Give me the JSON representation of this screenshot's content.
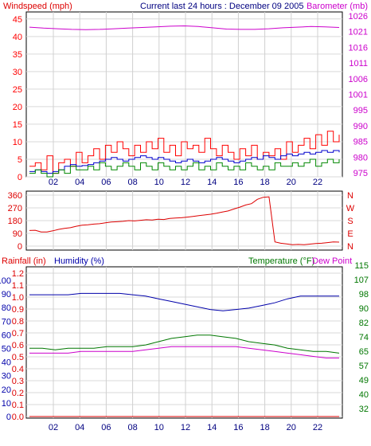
{
  "header": {
    "title": "Current last 24 hours : December 09 2005"
  },
  "colors": {
    "wind_speed": "#ff0000",
    "wind_avg": "#0000cc",
    "wind_green": "#008800",
    "barometer": "#cc00cc",
    "direction": "#dd0000",
    "rain": "#dd0000",
    "humidity": "#0000aa",
    "temperature": "#007700",
    "dew_point": "#cc00cc",
    "hour_labels": "#000080",
    "grid": "#d9d9d9"
  },
  "chart_data": [
    {
      "type": "line",
      "id": "wind_barometer",
      "left_axis_label": "Windspeed (mph)",
      "right_axis_label": "Barometer (mb)",
      "x_ticks": [
        "02",
        "04",
        "06",
        "08",
        "10",
        "12",
        "14",
        "16",
        "18",
        "20",
        "22"
      ],
      "left_ticks": [
        "0",
        "5",
        "10",
        "15",
        "20",
        "25",
        "30",
        "35",
        "40",
        "45"
      ],
      "right_ticks": [
        "975",
        "980",
        "985",
        "990",
        "995",
        "1001",
        "1006",
        "1011",
        "1016",
        "1021",
        "1026"
      ],
      "ylim_left": [
        0,
        47
      ],
      "ylim_right": [
        975,
        1026
      ],
      "series": [
        {
          "role": "barometer",
          "values": [
            1021.3,
            1021.0,
            1020.8,
            1020.6,
            1020.5,
            1020.6,
            1020.8,
            1021.0,
            1021.2,
            1021.4,
            1021.6,
            1021.7,
            1021.5,
            1021.1,
            1020.7,
            1020.6,
            1020.6,
            1020.8,
            1021.1,
            1021.3,
            1021.5,
            1021.4,
            1021.2
          ]
        },
        {
          "role": "wind_speed",
          "values": [
            3,
            4,
            2,
            6,
            1,
            4,
            5,
            3,
            7,
            4,
            6,
            8,
            5,
            9,
            7,
            10,
            8,
            6,
            9,
            7,
            10,
            8,
            11,
            7,
            9,
            6,
            10,
            8,
            9,
            7,
            11,
            8,
            6,
            9,
            7,
            5,
            8,
            6,
            9,
            5,
            7,
            6,
            8,
            5,
            10,
            7,
            9,
            11,
            8,
            12,
            9,
            13,
            10,
            12
          ]
        },
        {
          "role": "wind_avg",
          "values": [
            1.5,
            2,
            1.5,
            1,
            1.5,
            2,
            3,
            3.5,
            3,
            3.2,
            3.5,
            4,
            4.5,
            5,
            5.5,
            5,
            4.5,
            5,
            5.5,
            6,
            5.5,
            5,
            5.5,
            5,
            4.5,
            4,
            4.5,
            5,
            4.5,
            4,
            4.5,
            5,
            5.5,
            5,
            4.5,
            4,
            4.5,
            5,
            5.5,
            5,
            6,
            5.5,
            5,
            6,
            6.5,
            6,
            6.5,
            7,
            6.5,
            7,
            7.5,
            7,
            7.5,
            7
          ]
        },
        {
          "role": "wind_gust_low",
          "values": [
            1,
            2,
            1,
            0,
            1,
            2,
            1,
            3,
            2,
            2,
            3,
            2,
            4,
            3,
            2,
            3,
            4,
            3,
            2,
            4,
            3,
            2,
            4,
            3,
            2,
            3,
            2,
            3,
            4,
            2,
            3,
            2,
            4,
            3,
            2,
            3,
            2,
            4,
            3,
            2,
            3,
            2,
            4,
            3,
            3,
            4,
            3,
            4,
            5,
            3,
            4,
            5,
            4,
            5
          ]
        }
      ]
    },
    {
      "type": "line",
      "id": "wind_direction",
      "left_ticks": [
        "0",
        "90",
        "180",
        "270",
        "360"
      ],
      "right_ticks": [
        "N",
        "W",
        "S",
        "E",
        "N"
      ],
      "ylim": [
        0,
        360
      ],
      "series": [
        {
          "role": "direction",
          "values": [
            110,
            112,
            100,
            100,
            108,
            118,
            125,
            130,
            140,
            148,
            150,
            155,
            158,
            165,
            170,
            172,
            175,
            180,
            178,
            182,
            186,
            184,
            190,
            188,
            195,
            198,
            200,
            205,
            210,
            215,
            220,
            225,
            232,
            240,
            248,
            262,
            275,
            290,
            300,
            330,
            345,
            348,
            30,
            20,
            15,
            10,
            12,
            10,
            14,
            18,
            20,
            25,
            30,
            28
          ]
        }
      ]
    },
    {
      "type": "line",
      "id": "humidity_temperature",
      "left_axis_labels": [
        "Rainfall (in)",
        "Humidity (%)"
      ],
      "right_axis_labels": [
        "Temperature (°F)",
        "Dew Point"
      ],
      "left_ticks_rain": [
        "0.0",
        "0.1",
        "0.2",
        "0.3",
        "0.4",
        "0.5",
        "0.6",
        "0.7",
        "0.8",
        "0.9",
        "1.0",
        "1.1",
        "1.2"
      ],
      "left_ticks_humidity": [
        "0",
        "10",
        "20",
        "30",
        "40",
        "50",
        "60",
        "70",
        "80",
        "90",
        "100"
      ],
      "right_ticks": [
        "32",
        "40",
        "49",
        "57",
        "65",
        "74",
        "82",
        "90",
        "98",
        "107",
        "115"
      ],
      "ylim_humidity": [
        0,
        100
      ],
      "ylim_temp": [
        32,
        115
      ],
      "series": [
        {
          "role": "humidity",
          "values": [
            91,
            91,
            91,
            91,
            92,
            92,
            92,
            92,
            91,
            90,
            88,
            86,
            84,
            82,
            80,
            79,
            80,
            81,
            83,
            85,
            88,
            90,
            90,
            90,
            90
          ]
        },
        {
          "role": "temperature",
          "values": [
            69,
            69,
            68,
            69,
            69,
            69,
            70,
            70,
            70,
            71,
            73,
            75,
            76,
            77,
            77,
            76,
            75,
            73,
            72,
            71,
            69,
            68,
            67,
            67,
            66
          ]
        },
        {
          "role": "dew_point",
          "values": [
            66,
            66,
            66,
            66,
            67,
            67,
            67,
            67,
            67,
            68,
            69,
            70,
            70,
            70,
            70,
            70,
            70,
            69,
            68,
            67,
            66,
            65,
            64,
            63,
            63
          ]
        },
        {
          "role": "rainfall",
          "values": [
            0,
            0,
            0,
            0,
            0,
            0,
            0,
            0,
            0,
            0,
            0,
            0,
            0,
            0,
            0,
            0,
            0,
            0,
            0,
            0,
            0,
            0,
            0,
            0,
            0
          ]
        }
      ]
    }
  ]
}
